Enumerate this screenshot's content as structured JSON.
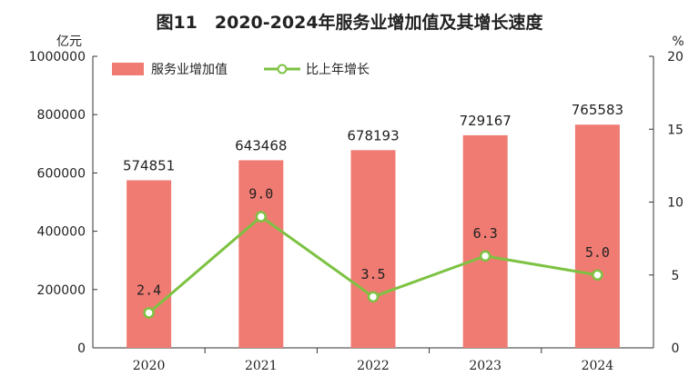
{
  "chart_data": {
    "type": "bar+line",
    "title": "图11　2020-2024年服务业增加值及其增长速度",
    "categories": [
      "2020",
      "2021",
      "2022",
      "2023",
      "2024"
    ],
    "left_axis": {
      "unit": "亿元",
      "ylim": [
        0,
        1000000
      ],
      "ticks": [
        "0",
        "200000",
        "400000",
        "600000",
        "800000",
        "1000000"
      ],
      "tick_values": [
        0,
        200000,
        400000,
        600000,
        800000,
        1000000
      ]
    },
    "right_axis": {
      "unit": "%",
      "ylim": [
        0,
        20
      ],
      "ticks": [
        "0",
        "5",
        "10",
        "15",
        "20"
      ],
      "tick_values": [
        0,
        5,
        10,
        15,
        20
      ]
    },
    "series": [
      {
        "name": "服务业增加值",
        "type": "bar",
        "axis": "left",
        "values": [
          574851,
          643468,
          678193,
          729167,
          765583
        ],
        "labels": [
          "574851",
          "643468",
          "678193",
          "729167",
          "765583"
        ]
      },
      {
        "name": "比上年增长",
        "type": "line",
        "axis": "right",
        "values": [
          2.4,
          9.0,
          3.5,
          6.3,
          5.0
        ],
        "labels": [
          "2.4",
          "9.0",
          "3.5",
          "6.3",
          "5.0"
        ]
      }
    ],
    "legend_position": "top-left",
    "grid": false,
    "colors": {
      "bar": "#EF7B72",
      "line": "#7DC242",
      "axis": "#333333"
    }
  }
}
